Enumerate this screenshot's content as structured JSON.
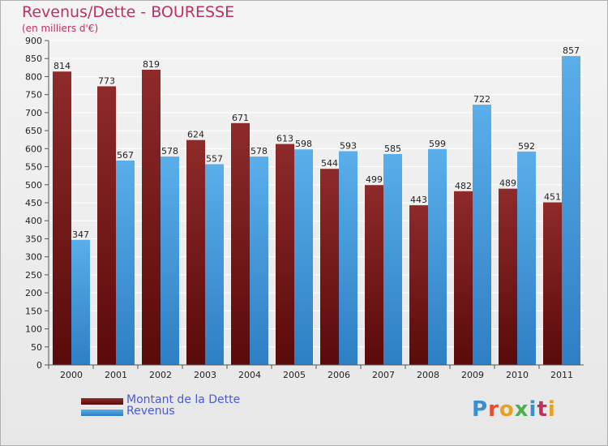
{
  "colors": {
    "debt": "#8b1a1a",
    "debt_light": "#9b3030",
    "revenue": "#4a9fe0",
    "revenue_light": "#5aafec",
    "title": "#c0305a",
    "legend_text": "#4a5ad0"
  },
  "chart_data": {
    "type": "bar",
    "title": "Revenus/Dette - BOURESSE",
    "subtitle": "(en milliers d'€)",
    "categories": [
      "2000",
      "2001",
      "2002",
      "2003",
      "2004",
      "2005",
      "2006",
      "2007",
      "2008",
      "2009",
      "2010",
      "2011"
    ],
    "series": [
      {
        "name": "Montant de la Dette",
        "values": [
          814,
          773,
          819,
          624,
          671,
          613,
          544,
          499,
          443,
          482,
          489,
          451
        ]
      },
      {
        "name": "Revenus",
        "values": [
          347,
          567,
          578,
          557,
          578,
          598,
          593,
          585,
          599,
          722,
          592,
          857
        ]
      }
    ],
    "ylim": [
      0,
      900
    ],
    "yticks": [
      0,
      50,
      100,
      150,
      200,
      250,
      300,
      350,
      400,
      450,
      500,
      550,
      600,
      650,
      700,
      750,
      800,
      850,
      900
    ],
    "grid": true,
    "legend": "bottom-left"
  },
  "logo_text": [
    "P",
    "r",
    "o",
    "x",
    "i",
    "t",
    "i"
  ]
}
